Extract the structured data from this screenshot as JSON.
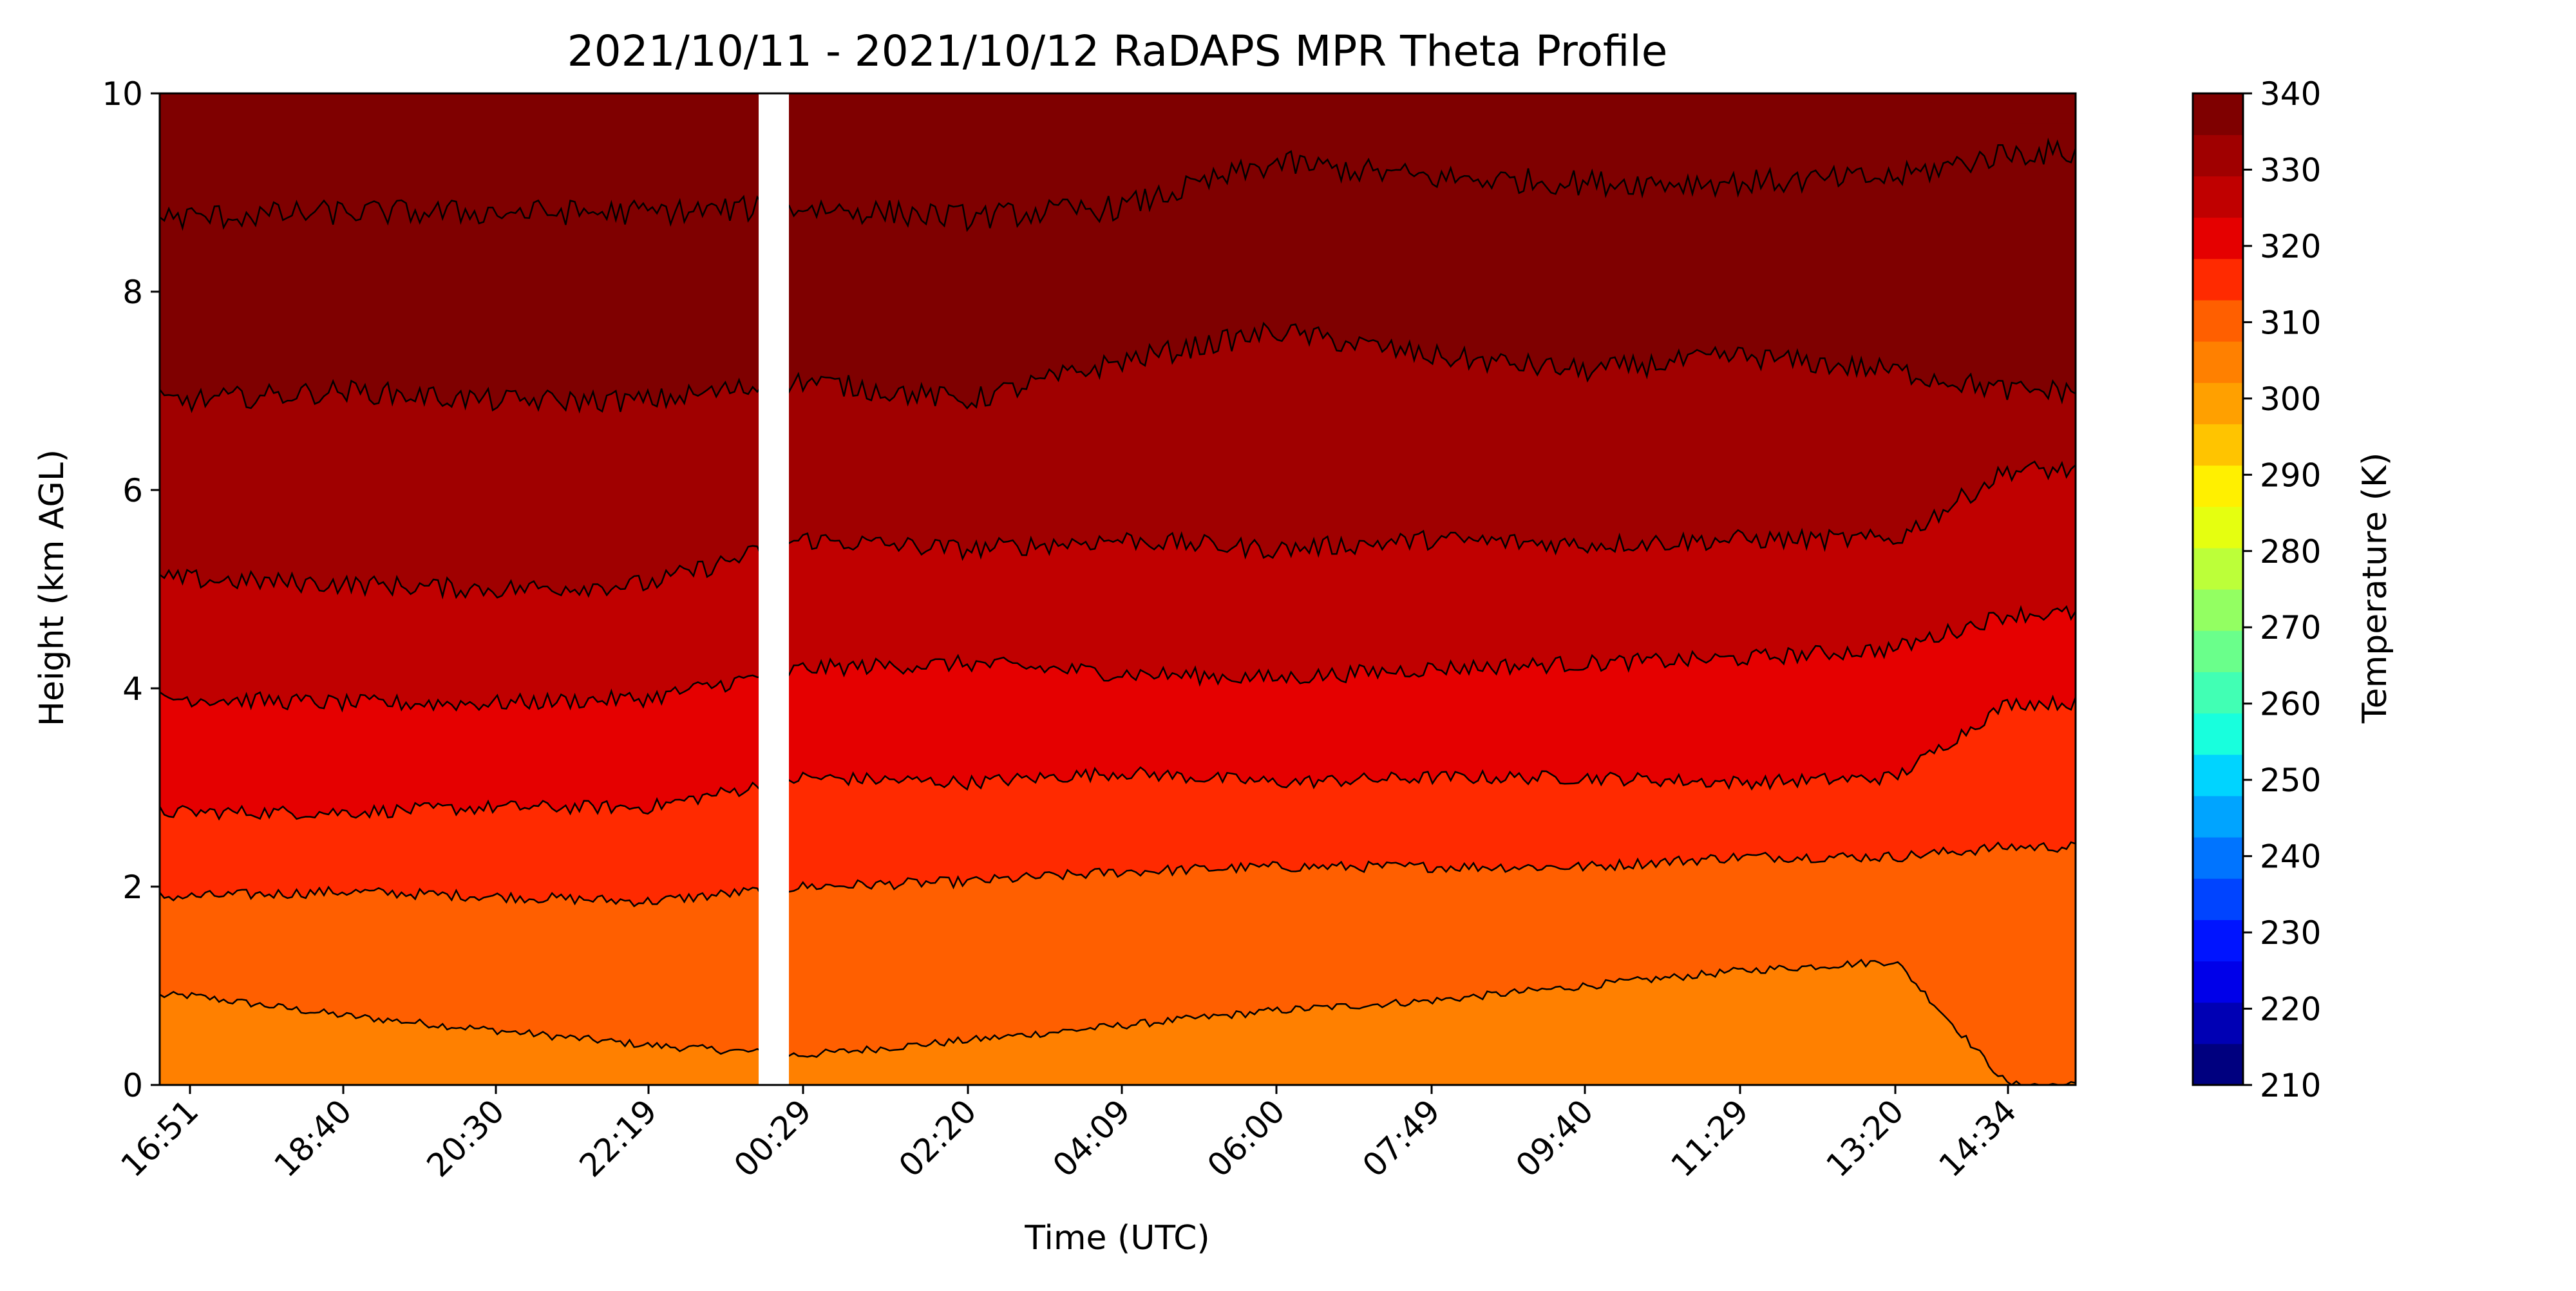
{
  "chart_data": {
    "type": "heatmap",
    "subtype": "filled contour (time-height cross section)",
    "title": "2021/10/11 - 2021/10/12 RaDAPS MPR Theta Profile",
    "xlabel": "Time (UTC)",
    "ylabel": "Height (km AGL)",
    "ylim": [
      0,
      10
    ],
    "y_ticks": [
      "0",
      "2",
      "4",
      "6",
      "8",
      "10"
    ],
    "x_ticks": [
      "16:51",
      "18:40",
      "20:30",
      "22:19",
      "00:29",
      "02:20",
      "04:09",
      "06:00",
      "07:49",
      "09:40",
      "11:29",
      "13:20",
      "14:34"
    ],
    "grid": false,
    "colorbar": {
      "label": "Temperature (K)",
      "ticks": [
        "210",
        "220",
        "230",
        "240",
        "250",
        "260",
        "270",
        "280",
        "290",
        "300",
        "310",
        "320",
        "330",
        "340"
      ],
      "range": [
        210,
        340
      ],
      "levels": [
        210,
        215,
        220,
        225,
        230,
        235,
        240,
        245,
        250,
        255,
        260,
        265,
        270,
        275,
        280,
        285,
        290,
        295,
        300,
        305,
        310,
        315,
        320,
        325,
        330,
        335,
        340
      ],
      "colormap": "jet",
      "colors": [
        "#00007f",
        "#0000b4",
        "#0000e9",
        "#0014ff",
        "#0044ff",
        "#0074ff",
        "#00a4ff",
        "#00d4ff",
        "#18ffdd",
        "#41ffb4",
        "#6aff8b",
        "#93ff62",
        "#bcff39",
        "#e5ff10",
        "#fff000",
        "#ffc400",
        "#ffa000",
        "#ff8000",
        "#ff5f00",
        "#ff2a00",
        "#e50000",
        "#c00000",
        "#a00000",
        "#7f0000"
      ]
    },
    "data_gap": {
      "start_tick": "22:19",
      "end_tick": "00:29",
      "note_shown": false
    },
    "series": [
      {
        "level_K": 300,
        "heights_km": [
          0.9,
          0.7,
          0.55,
          0.4,
          0.3,
          0.45,
          0.6,
          0.75,
          0.85,
          1.0,
          1.15,
          1.25,
          0.0
        ]
      },
      {
        "level_K": 305,
        "heights_km": [
          1.9,
          1.95,
          1.9,
          1.85,
          2.0,
          2.05,
          2.15,
          2.2,
          2.2,
          2.2,
          2.3,
          2.3,
          2.4
        ]
      },
      {
        "level_K": 310,
        "heights_km": [
          2.75,
          2.75,
          2.8,
          2.8,
          3.1,
          3.05,
          3.15,
          3.05,
          3.1,
          3.1,
          3.05,
          3.1,
          3.85
        ]
      },
      {
        "level_K": 315,
        "heights_km": [
          3.9,
          3.85,
          3.85,
          3.9,
          4.2,
          4.25,
          4.15,
          4.1,
          4.2,
          4.25,
          4.3,
          4.4,
          4.75
        ]
      },
      {
        "level_K": 320,
        "heights_km": [
          5.1,
          5.05,
          5.0,
          5.05,
          5.5,
          5.4,
          5.5,
          5.4,
          5.5,
          5.45,
          5.5,
          5.5,
          6.2
        ]
      },
      {
        "level_K": 325,
        "heights_km": [
          6.9,
          7.0,
          6.9,
          6.9,
          7.1,
          6.9,
          7.3,
          7.6,
          7.35,
          7.2,
          7.35,
          7.2,
          7.0
        ]
      },
      {
        "level_K": 330,
        "heights_km": [
          8.75,
          8.8,
          8.8,
          8.8,
          8.85,
          8.75,
          8.85,
          9.3,
          9.15,
          9.1,
          9.1,
          9.15,
          9.4
        ]
      },
      {
        "level_K": 335,
        "heights_km": [
          9.95,
          10.0,
          10.0,
          10.0,
          10.0,
          10.0,
          10.0,
          10.0,
          10.0,
          10.0,
          10.0,
          10.0,
          9.7
        ]
      }
    ]
  }
}
